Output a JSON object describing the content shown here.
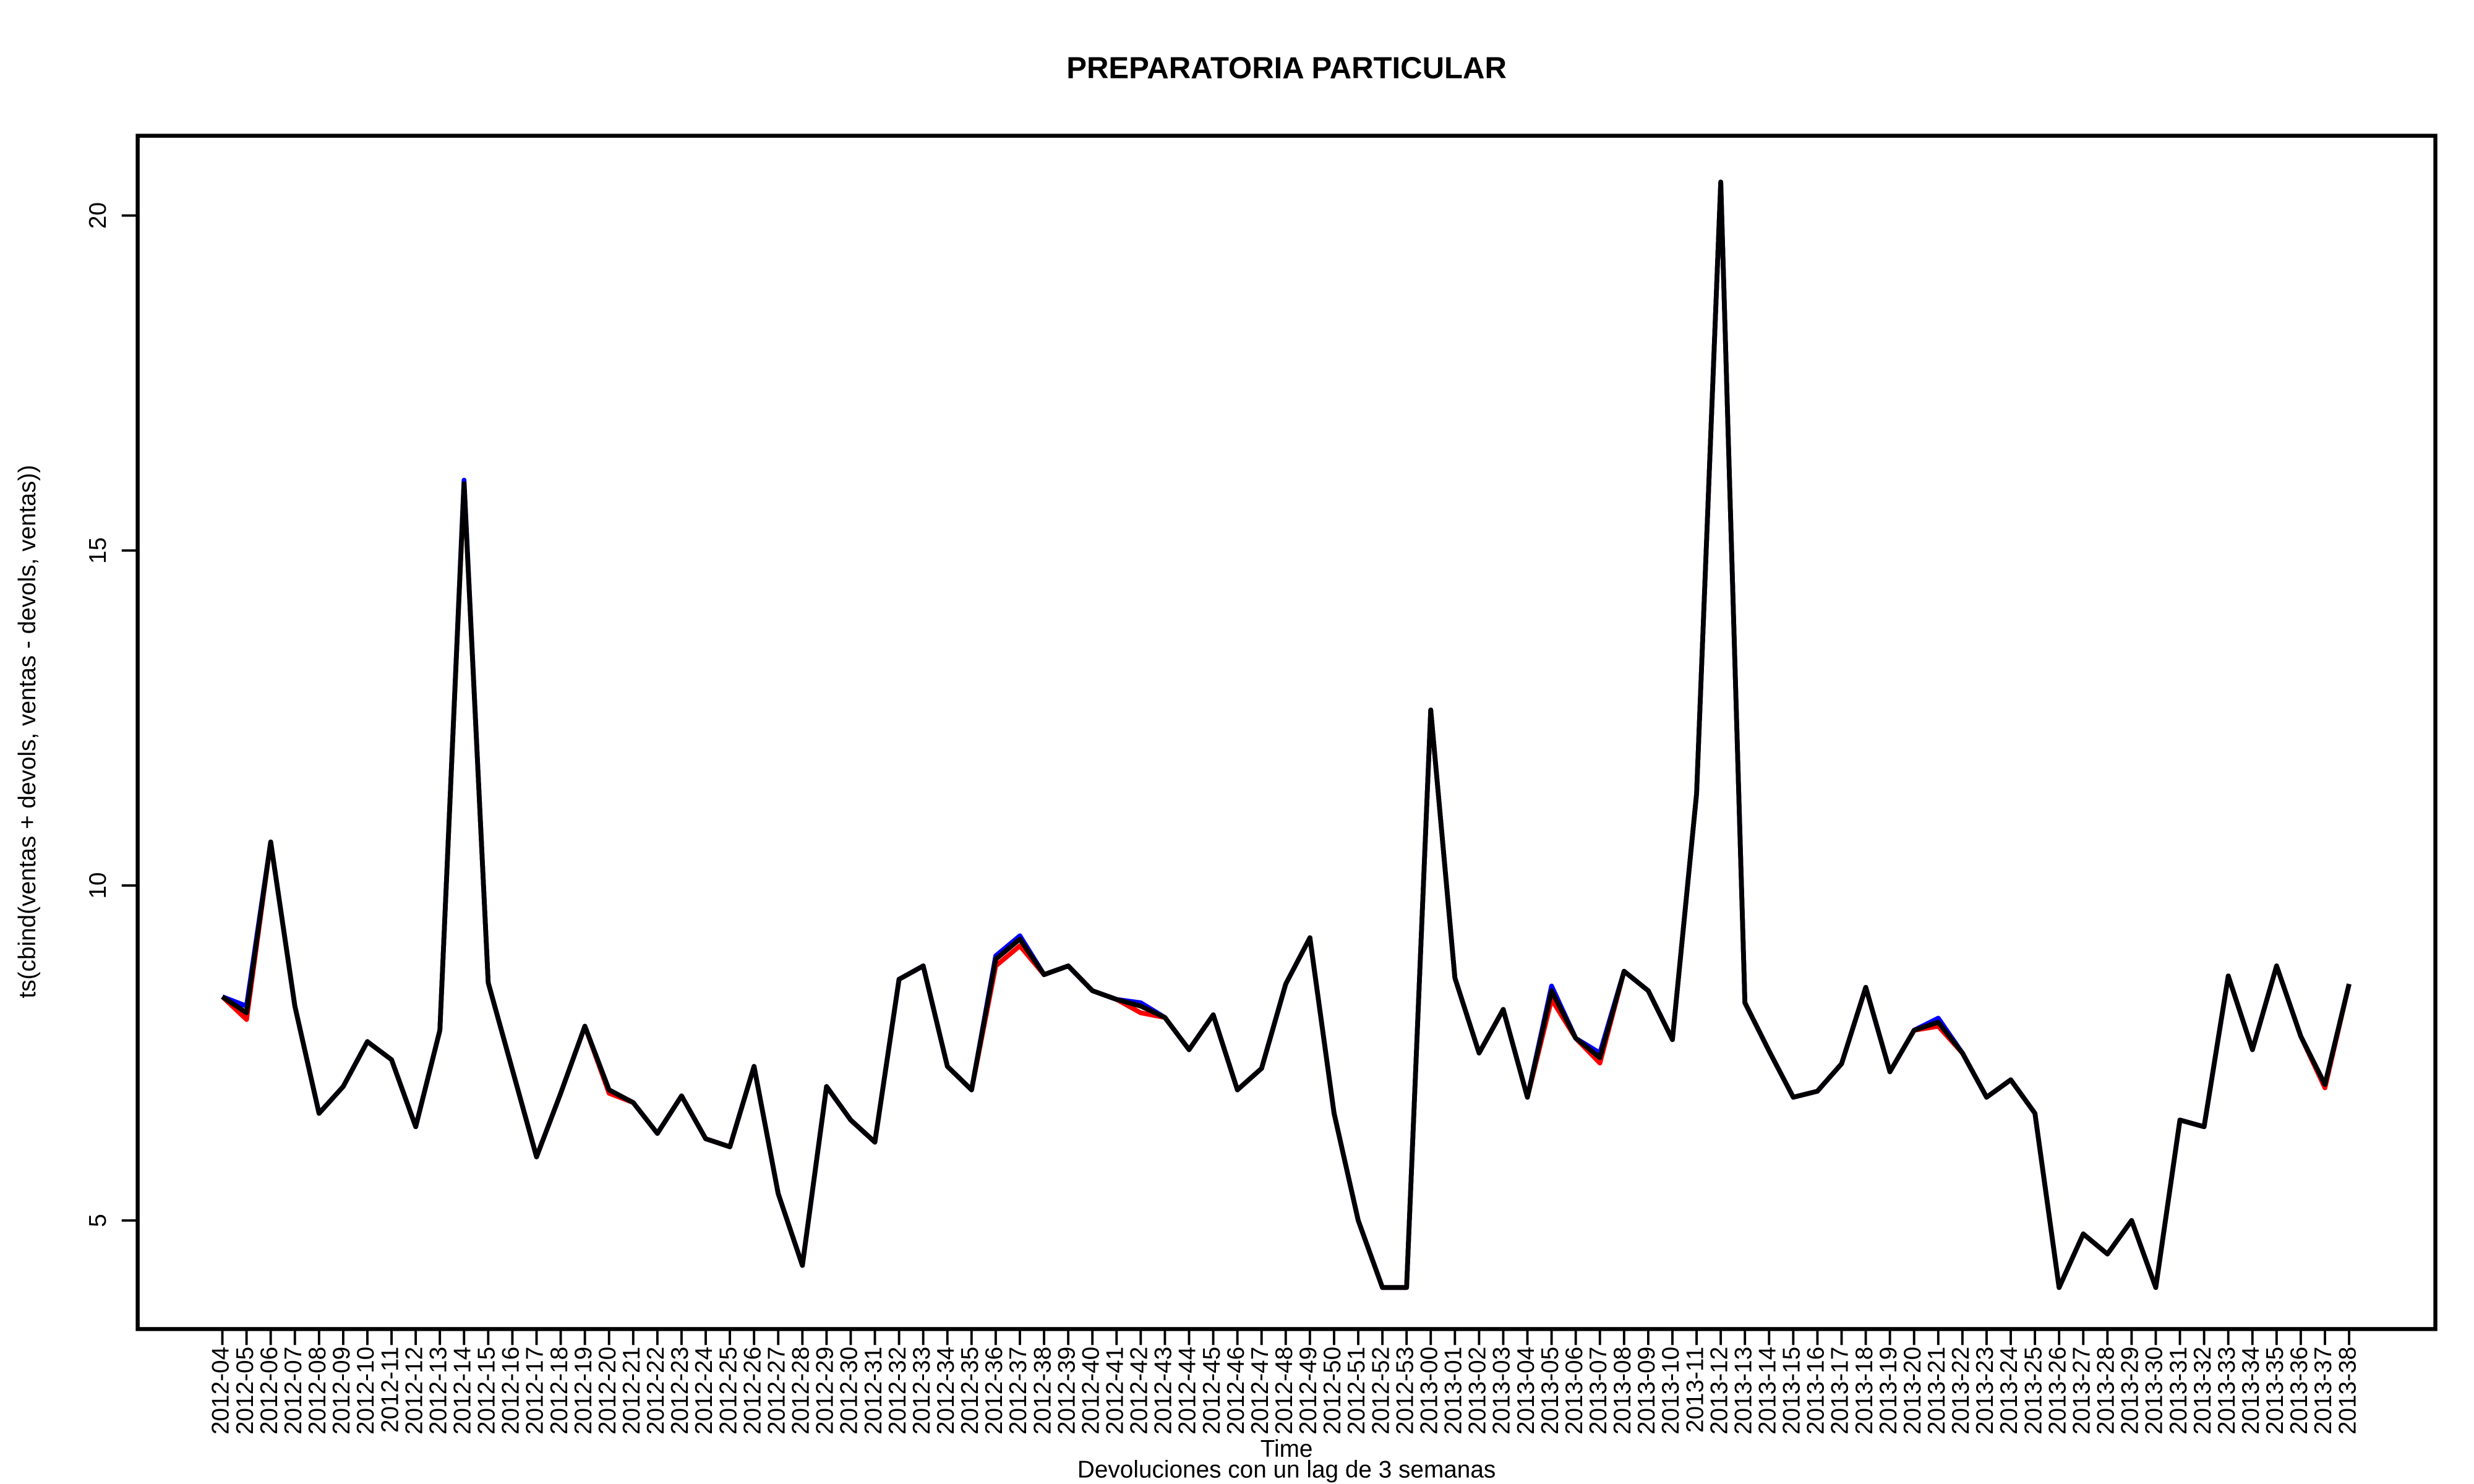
{
  "chart_data": {
    "type": "line",
    "title": "PREPARATORIA PARTICULAR",
    "x_label": "Time",
    "subtitle": "Devoluciones con un lag de 3 semanas",
    "y_label": "ts(cbind(ventas + devols, ventas - devols, ventas))",
    "categories": [
      "2012-04",
      "2012-05",
      "2012-06",
      "2012-07",
      "2012-08",
      "2012-09",
      "2012-10",
      "2012-11",
      "2012-12",
      "2012-13",
      "2012-14",
      "2012-15",
      "2012-16",
      "2012-17",
      "2012-18",
      "2012-19",
      "2012-20",
      "2012-21",
      "2012-22",
      "2012-23",
      "2012-24",
      "2012-25",
      "2012-26",
      "2012-27",
      "2012-28",
      "2012-29",
      "2012-30",
      "2012-31",
      "2012-32",
      "2012-33",
      "2012-34",
      "2012-35",
      "2012-36",
      "2012-37",
      "2012-38",
      "2012-39",
      "2012-40",
      "2012-41",
      "2012-42",
      "2012-43",
      "2012-44",
      "2012-45",
      "2012-46",
      "2012-47",
      "2012-48",
      "2012-49",
      "2012-50",
      "2012-51",
      "2012-52",
      "2012-53",
      "2013-00",
      "2013-01",
      "2013-02",
      "2013-03",
      "2013-04",
      "2013-05",
      "2013-06",
      "2013-07",
      "2013-08",
      "2013-09",
      "2013-10",
      "2013-11",
      "2013-12",
      "2013-13",
      "2013-14",
      "2013-15",
      "2013-16",
      "2013-17",
      "2013-18",
      "2013-19",
      "2013-20",
      "2013-21",
      "2013-22",
      "2013-23",
      "2013-24",
      "2013-25",
      "2013-26",
      "2013-27",
      "2013-28",
      "2013-29",
      "2013-30",
      "2013-31",
      "2013-32",
      "2013-33",
      "2013-34",
      "2013-35",
      "2013-36",
      "2013-37",
      "2013-38"
    ],
    "series": [
      {
        "color": "#ff0000",
        "values": [
          8.34,
          8.0,
          10.65,
          8.2,
          6.6,
          7.0,
          7.67,
          7.4,
          6.4,
          7.84,
          16.0,
          8.55,
          7.25,
          5.95,
          6.9,
          7.9,
          6.9,
          6.76,
          6.3,
          6.86,
          6.22,
          6.1,
          7.3,
          5.4,
          4.33,
          7.0,
          6.5,
          6.17,
          8.6,
          8.8,
          7.3,
          6.95,
          8.8,
          9.1,
          8.67,
          8.8,
          8.43,
          8.3,
          8.1,
          8.03,
          7.55,
          8.07,
          6.95,
          7.27,
          8.53,
          9.22,
          6.6,
          5.0,
          4.0,
          4.0,
          12.62,
          8.62,
          7.5,
          8.15,
          6.84,
          8.3,
          7.72,
          7.35,
          8.72,
          8.43,
          7.7,
          11.37,
          20.5,
          8.25,
          7.53,
          6.84,
          6.93,
          7.34,
          8.48,
          7.22,
          7.84,
          7.9,
          7.5,
          6.84,
          7.1,
          6.6,
          4.0,
          4.8,
          4.5,
          5.0,
          4.0,
          6.5,
          6.4,
          8.65,
          7.55,
          8.8,
          7.75,
          6.98,
          8.53
        ]
      },
      {
        "color": "#0000ff",
        "values": [
          8.34,
          8.2,
          10.65,
          8.2,
          6.6,
          7.0,
          7.67,
          7.4,
          6.4,
          7.84,
          16.05,
          8.55,
          7.25,
          5.95,
          6.9,
          7.9,
          6.95,
          6.76,
          6.3,
          6.86,
          6.22,
          6.1,
          7.3,
          5.4,
          4.33,
          7.0,
          6.5,
          6.17,
          8.6,
          8.8,
          7.3,
          6.95,
          8.95,
          9.25,
          8.67,
          8.8,
          8.43,
          8.3,
          8.25,
          8.03,
          7.55,
          8.07,
          6.95,
          7.27,
          8.53,
          9.22,
          6.6,
          5.0,
          4.0,
          4.0,
          12.62,
          8.62,
          7.5,
          8.15,
          6.84,
          8.5,
          7.72,
          7.5,
          8.72,
          8.43,
          7.7,
          11.37,
          20.5,
          8.25,
          7.53,
          6.84,
          6.93,
          7.34,
          8.48,
          7.22,
          7.84,
          8.02,
          7.5,
          6.84,
          7.1,
          6.6,
          4.0,
          4.8,
          4.5,
          5.0,
          4.0,
          6.5,
          6.4,
          8.65,
          7.55,
          8.8,
          7.75,
          7.03,
          8.53
        ]
      },
      {
        "color": "#000000",
        "values": [
          8.34,
          8.1,
          10.65,
          8.2,
          6.6,
          7.0,
          7.67,
          7.4,
          6.4,
          7.84,
          16.0,
          8.55,
          7.25,
          5.95,
          6.9,
          7.9,
          6.95,
          6.76,
          6.3,
          6.86,
          6.22,
          6.1,
          7.3,
          5.4,
          4.33,
          7.0,
          6.5,
          6.17,
          8.6,
          8.8,
          7.3,
          6.95,
          8.9,
          9.2,
          8.67,
          8.8,
          8.43,
          8.3,
          8.2,
          8.03,
          7.55,
          8.07,
          6.95,
          7.27,
          8.53,
          9.22,
          6.6,
          5.0,
          4.0,
          4.0,
          12.62,
          8.62,
          7.5,
          8.15,
          6.84,
          8.43,
          7.72,
          7.43,
          8.72,
          8.43,
          7.7,
          11.37,
          20.5,
          8.25,
          7.53,
          6.84,
          6.93,
          7.34,
          8.48,
          7.22,
          7.84,
          7.96,
          7.5,
          6.84,
          7.1,
          6.6,
          4.0,
          4.8,
          4.5,
          5.0,
          4.0,
          6.5,
          6.4,
          8.65,
          7.55,
          8.8,
          7.75,
          7.03,
          8.53
        ]
      }
    ],
    "ylim": [
      3.38,
      21.19
    ],
    "yticks": [
      5,
      10,
      15,
      20
    ],
    "grid": false
  }
}
